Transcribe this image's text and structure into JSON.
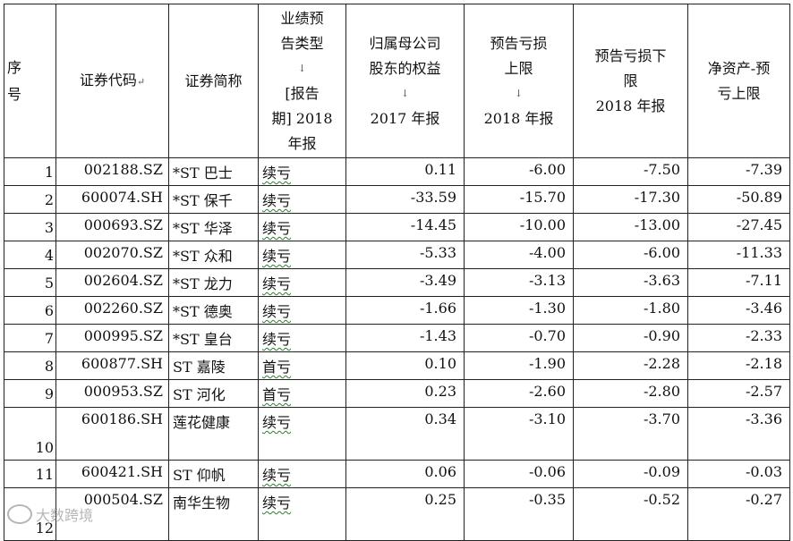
{
  "headers": {
    "seq": "序号",
    "code": "证券代码",
    "name": "证券简称",
    "type": [
      "业绩预",
      "告类型",
      "[报告",
      "期] 2018",
      "年报"
    ],
    "equity": [
      "归属母公司",
      "股东的权益",
      "2017 年报"
    ],
    "upper": [
      "预告亏损",
      "上限",
      "2018 年报"
    ],
    "lower": [
      "预告亏损下",
      "限",
      "2018 年报"
    ],
    "net": [
      "净资产-预",
      "亏上限"
    ]
  },
  "rows": [
    {
      "seq": "1",
      "code": "002188.SZ",
      "name": "*ST 巴士",
      "type": "续亏",
      "equity": "0.11",
      "upper": "-6.00",
      "lower": "-7.50",
      "net": "-7.39"
    },
    {
      "seq": "2",
      "code": "600074.SH",
      "name": "*ST 保千",
      "type": "续亏",
      "equity": "-33.59",
      "upper": "-15.70",
      "lower": "-17.30",
      "net": "-50.89"
    },
    {
      "seq": "3",
      "code": "000693.SZ",
      "name": "*ST 华泽",
      "type": "续亏",
      "equity": "-14.45",
      "upper": "-10.00",
      "lower": "-13.00",
      "net": "-27.45"
    },
    {
      "seq": "4",
      "code": "002070.SZ",
      "name": "*ST 众和",
      "type": "续亏",
      "equity": "-5.33",
      "upper": "-4.00",
      "lower": "-6.00",
      "net": "-11.33"
    },
    {
      "seq": "5",
      "code": "002604.SZ",
      "name": "*ST 龙力",
      "type": "续亏",
      "equity": "-3.49",
      "upper": "-3.13",
      "lower": "-3.63",
      "net": "-7.11"
    },
    {
      "seq": "6",
      "code": "002260.SZ",
      "name": "*ST 德奥",
      "type": "续亏",
      "equity": "-1.66",
      "upper": "-1.30",
      "lower": "-1.80",
      "net": "-3.46"
    },
    {
      "seq": "7",
      "code": "000995.SZ",
      "name": "*ST 皇台",
      "type": "续亏",
      "equity": "-1.43",
      "upper": "-0.70",
      "lower": "-0.90",
      "net": "-2.33"
    },
    {
      "seq": "8",
      "code": "600877.SH",
      "name": "ST 嘉陵",
      "type": "首亏",
      "equity": "0.10",
      "upper": "-1.90",
      "lower": "-2.28",
      "net": "-2.18"
    },
    {
      "seq": "9",
      "code": "000953.SZ",
      "name": "ST 河化",
      "type": "首亏",
      "equity": "0.23",
      "upper": "-2.60",
      "lower": "-2.80",
      "net": "-2.57"
    },
    {
      "seq": "10",
      "code": "600186.SH",
      "name": "莲花健康",
      "type": "续亏",
      "equity": "0.34",
      "upper": "-3.10",
      "lower": "-3.70",
      "net": "-3.36"
    },
    {
      "seq": "11",
      "code": "600421.SH",
      "name": "ST 仰帆",
      "type": "续亏",
      "equity": "0.06",
      "upper": "-0.06",
      "lower": "-0.09",
      "net": "-0.03"
    },
    {
      "seq": "12",
      "code": "000504.SZ",
      "name": "南华生物",
      "type": "续亏",
      "equity": "0.25",
      "upper": "-0.35",
      "lower": "-0.52",
      "net": "-0.27"
    }
  ],
  "watermark": "大数跨境"
}
